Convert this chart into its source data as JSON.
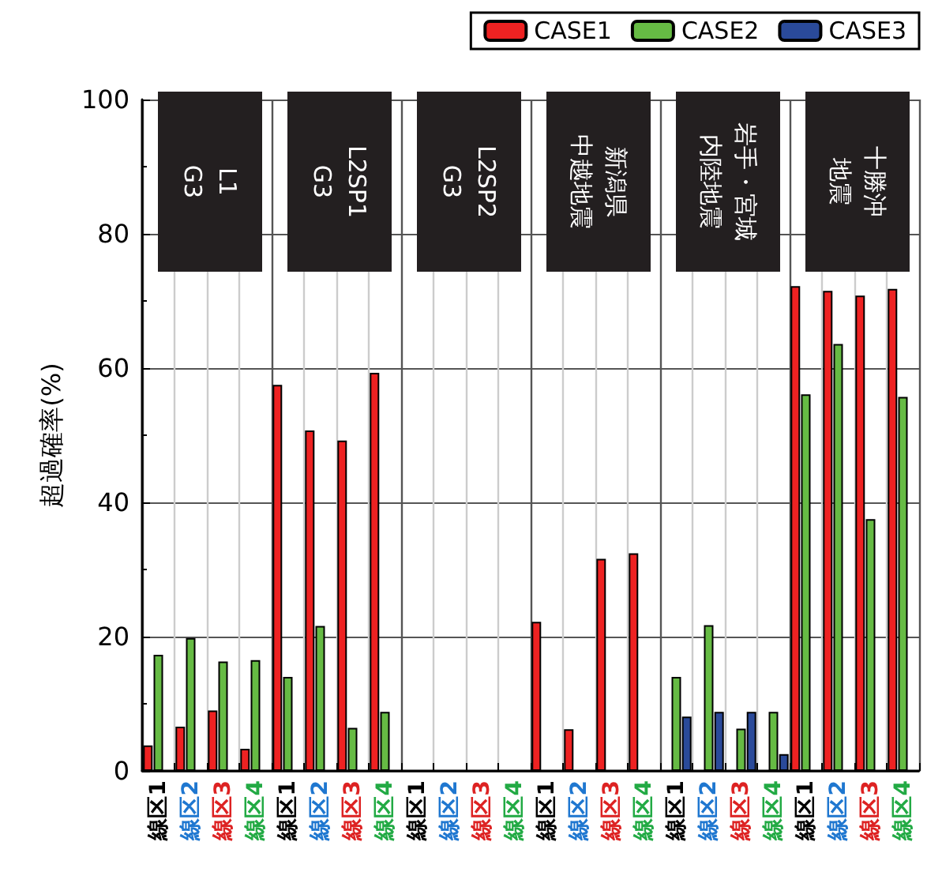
{
  "chart_data": {
    "type": "bar",
    "ylabel": "超過確率(%)",
    "categories": [
      "線区1",
      "線区2",
      "線区3",
      "線区4",
      "線区1",
      "線区2",
      "線区3",
      "線区4",
      "線区1",
      "線区2",
      "線区3",
      "線区4",
      "線区1",
      "線区2",
      "線区3",
      "線区4",
      "線区1",
      "線区2",
      "線区3",
      "線区4",
      "線区1",
      "線区2",
      "線区3",
      "線区4"
    ],
    "series": [
      {
        "name": "CASE1",
        "color": "#ee2222",
        "values": [
          3.8,
          6.6,
          9.0,
          3.3,
          57.5,
          50.7,
          49.2,
          59.3,
          null,
          null,
          null,
          null,
          22.2,
          6.2,
          31.6,
          32.4,
          null,
          null,
          null,
          null,
          72.2,
          71.5,
          70.8,
          71.8
        ]
      },
      {
        "name": "CASE2",
        "color": "#66bb44",
        "values": [
          17.3,
          19.8,
          16.3,
          16.5,
          14.0,
          21.6,
          6.4,
          8.8,
          null,
          null,
          null,
          null,
          null,
          null,
          null,
          null,
          14.0,
          21.7,
          6.3,
          8.8,
          56.1,
          63.6,
          37.5,
          55.7
        ]
      },
      {
        "name": "CASE3",
        "color": "#2a4a9a",
        "values": [
          null,
          null,
          null,
          null,
          null,
          null,
          null,
          null,
          null,
          null,
          null,
          null,
          null,
          null,
          null,
          null,
          8.1,
          8.8,
          8.8,
          2.5,
          null,
          null,
          null,
          null
        ]
      }
    ],
    "ylim": [
      0,
      100
    ],
    "yticks": [
      0,
      20,
      40,
      60,
      80,
      100
    ],
    "grid": true,
    "legend": "top right",
    "annotations": [
      "L1",
      "G3",
      "L2SP1",
      "G3",
      "L2SP2",
      "G3",
      "新潟県",
      "中越地震",
      "岩手・宮城",
      "内陸地震",
      "十勝沖",
      "地震"
    ]
  }
}
